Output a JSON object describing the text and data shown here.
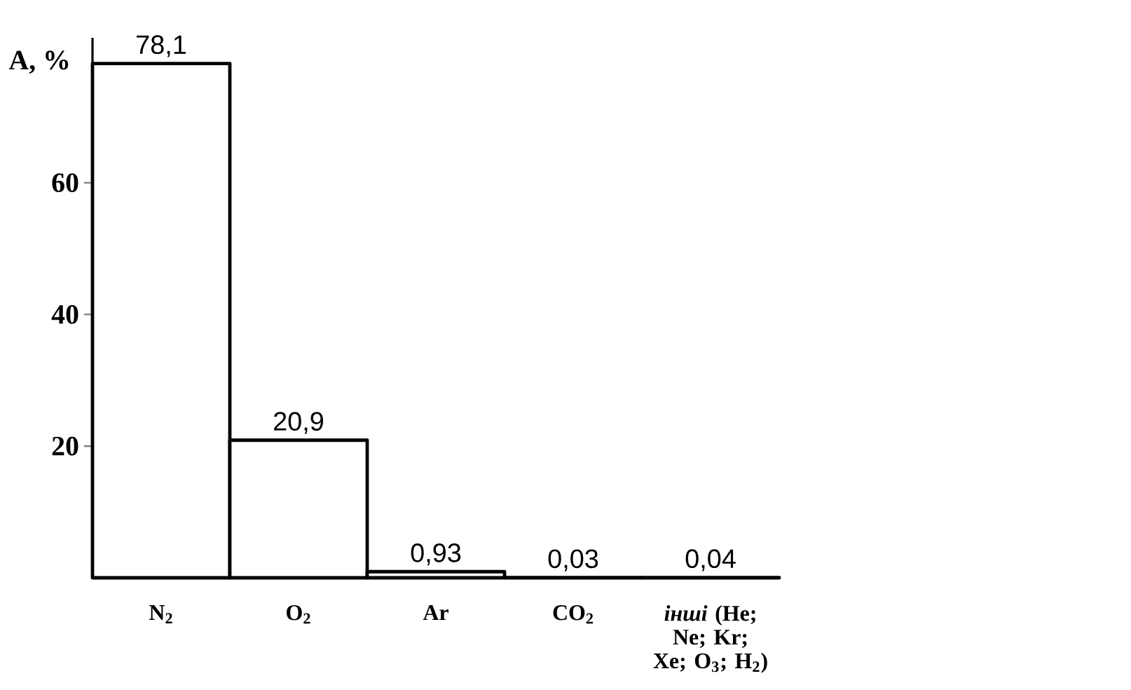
{
  "chart_data": {
    "type": "bar",
    "ylabel": "A, %",
    "categories": [
      "N$_{2}$",
      "O$_{2}$",
      "Ar",
      "CO$_{2}$",
      "*інші* (He; Ne; Kr; Xe; O$_{3}$; H$_{2}$)"
    ],
    "values": [
      78.1,
      20.9,
      0.93,
      0.03,
      0.04
    ],
    "value_labels": [
      "78,1",
      "20,9",
      "0,93",
      "0,03",
      "0,04"
    ],
    "color": "#ffffff",
    "ylim": [
      0,
      82
    ],
    "yticks": [
      20,
      40,
      60
    ]
  }
}
